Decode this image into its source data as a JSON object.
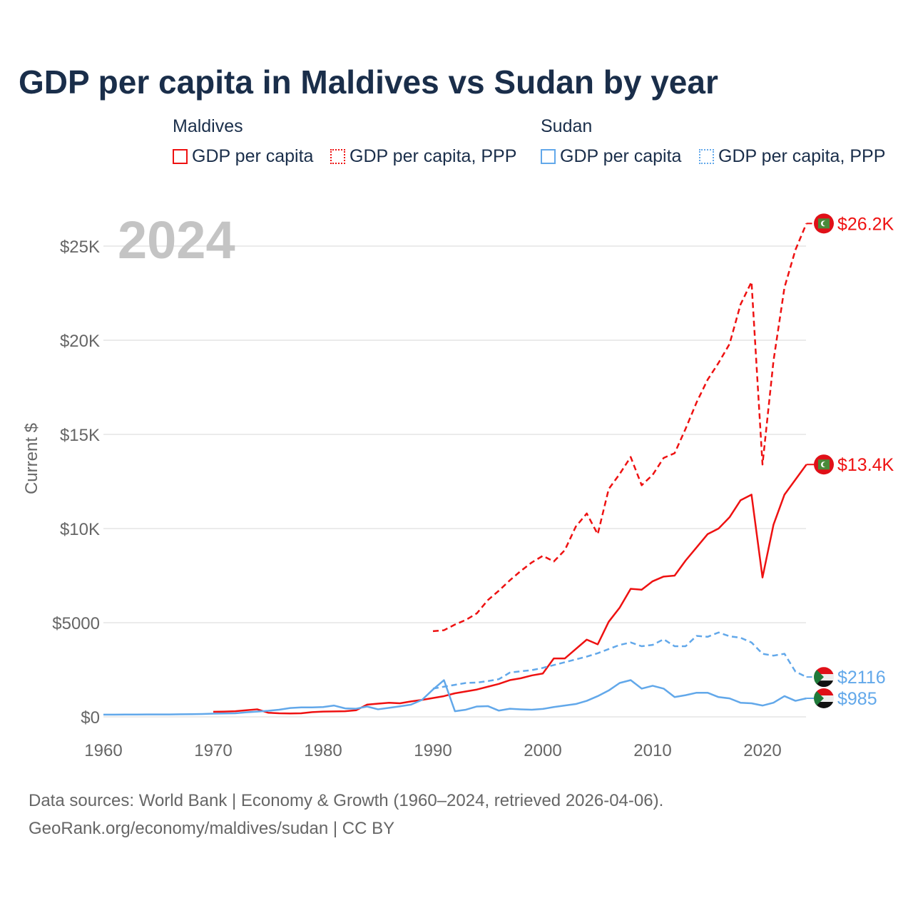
{
  "title": "GDP per capita in Maldives vs Sudan by year",
  "legend": {
    "groups": [
      {
        "name": "Maldives",
        "items": [
          "GDP per capita",
          "GDP per capita, PPP"
        ]
      },
      {
        "name": "Sudan",
        "items": [
          "GDP per capita",
          "GDP per capita, PPP"
        ]
      }
    ]
  },
  "footer": {
    "line1": "Data sources: World Bank | Economy & Growth (1960–2024, retrieved 2026-04-06).",
    "line2": "GeoRank.org/economy/maldives/sudan | CC BY"
  },
  "chart_data": {
    "type": "line",
    "year_label": "2024",
    "ylabel": "Current $",
    "xlim": [
      1960,
      2024
    ],
    "ylim": [
      0,
      27000
    ],
    "xticks": [
      1960,
      1970,
      1980,
      1990,
      2000,
      2010,
      2020
    ],
    "yticks": [
      {
        "v": 0,
        "l": "$0"
      },
      {
        "v": 5000,
        "l": "$5000"
      },
      {
        "v": 10000,
        "l": "$10K"
      },
      {
        "v": 15000,
        "l": "$15K"
      },
      {
        "v": 20000,
        "l": "$20K"
      },
      {
        "v": 25000,
        "l": "$25K"
      }
    ],
    "series": [
      {
        "name": "Maldives GDP per capita",
        "color": "#ee1111",
        "dash": false,
        "start": 1970,
        "end_label": "$13.4K",
        "flag": "maldives",
        "values": [
          270,
          280,
          300,
          350,
          400,
          220,
          190,
          180,
          190,
          250,
          280,
          290,
          300,
          350,
          650,
          700,
          750,
          720,
          820,
          900,
          1000,
          1100,
          1250,
          1350,
          1450,
          1600,
          1750,
          1950,
          2050,
          2200,
          2300,
          3100,
          3100,
          3600,
          4100,
          3850,
          5050,
          5800,
          6800,
          6750,
          7200,
          7450,
          7500,
          8300,
          9000,
          9700,
          10000,
          10600,
          11500,
          11800,
          7400,
          10200,
          11800,
          12600,
          13400
        ]
      },
      {
        "name": "Maldives GDP per capita, PPP",
        "color": "#ee1111",
        "dash": true,
        "start": 1990,
        "end_label": "$26.2K",
        "flag": "maldives",
        "values": [
          4550,
          4600,
          4900,
          5150,
          5500,
          6200,
          6700,
          7250,
          7750,
          8200,
          8550,
          8250,
          8850,
          10100,
          10800,
          9700,
          12100,
          12900,
          13800,
          12300,
          12850,
          13750,
          14000,
          15300,
          16700,
          17900,
          18800,
          19800,
          21900,
          23100,
          13400,
          18900,
          22800,
          24800,
          26200
        ]
      },
      {
        "name": "Sudan GDP per capita",
        "color": "#62a8ea",
        "dash": false,
        "start": 1960,
        "end_label": "$985",
        "flag": "sudan",
        "values": [
          120,
          120,
          125,
          125,
          130,
          130,
          130,
          135,
          140,
          150,
          170,
          180,
          190,
          240,
          280,
          320,
          380,
          470,
          500,
          500,
          520,
          600,
          450,
          430,
          550,
          400,
          480,
          560,
          650,
          900,
          1450,
          1950,
          300,
          380,
          550,
          570,
          330,
          430,
          400,
          380,
          420,
          520,
          600,
          680,
          850,
          1100,
          1400,
          1800,
          1950,
          1500,
          1650,
          1500,
          1050,
          1150,
          1280,
          1280,
          1050,
          980,
          750,
          720,
          600,
          750,
          1100,
          850,
          985
        ]
      },
      {
        "name": "Sudan GDP per capita, PPP",
        "color": "#62a8ea",
        "dash": true,
        "start": 1990,
        "end_label": "$2116",
        "flag": "sudan",
        "values": [
          1500,
          1600,
          1700,
          1800,
          1820,
          1900,
          2000,
          2350,
          2420,
          2480,
          2600,
          2750,
          2900,
          3050,
          3200,
          3380,
          3600,
          3820,
          3950,
          3750,
          3820,
          4120,
          3750,
          3750,
          4300,
          4250,
          4480,
          4280,
          4200,
          3950,
          3350,
          3250,
          3350,
          2400,
          2116
        ]
      }
    ]
  }
}
